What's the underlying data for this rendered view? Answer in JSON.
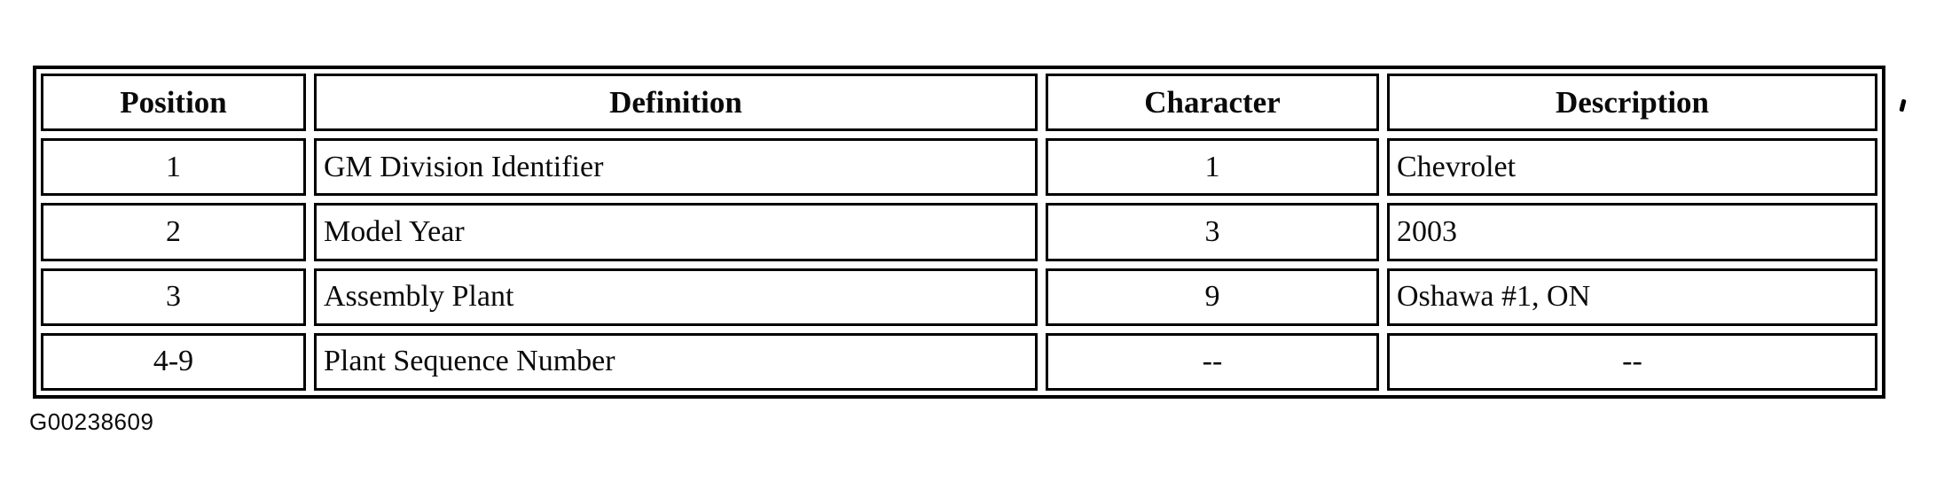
{
  "table": {
    "columns": [
      {
        "label": "Position"
      },
      {
        "label": "Definition"
      },
      {
        "label": "Character"
      },
      {
        "label": "Description"
      }
    ],
    "rows": [
      {
        "position": "1",
        "definition": "GM Division Identifier",
        "character": "1",
        "description": "Chevrolet"
      },
      {
        "position": "2",
        "definition": "Model Year",
        "character": "3",
        "description": "2003"
      },
      {
        "position": "3",
        "definition": "Assembly Plant",
        "character": "9",
        "description": "Oshawa #1, ON"
      },
      {
        "position": "4-9",
        "definition": "Plant Sequence Number",
        "character": "--",
        "description": "--"
      }
    ]
  },
  "figure_id": "G00238609",
  "colors": {
    "ink": "#000000",
    "paper": "#ffffff"
  }
}
